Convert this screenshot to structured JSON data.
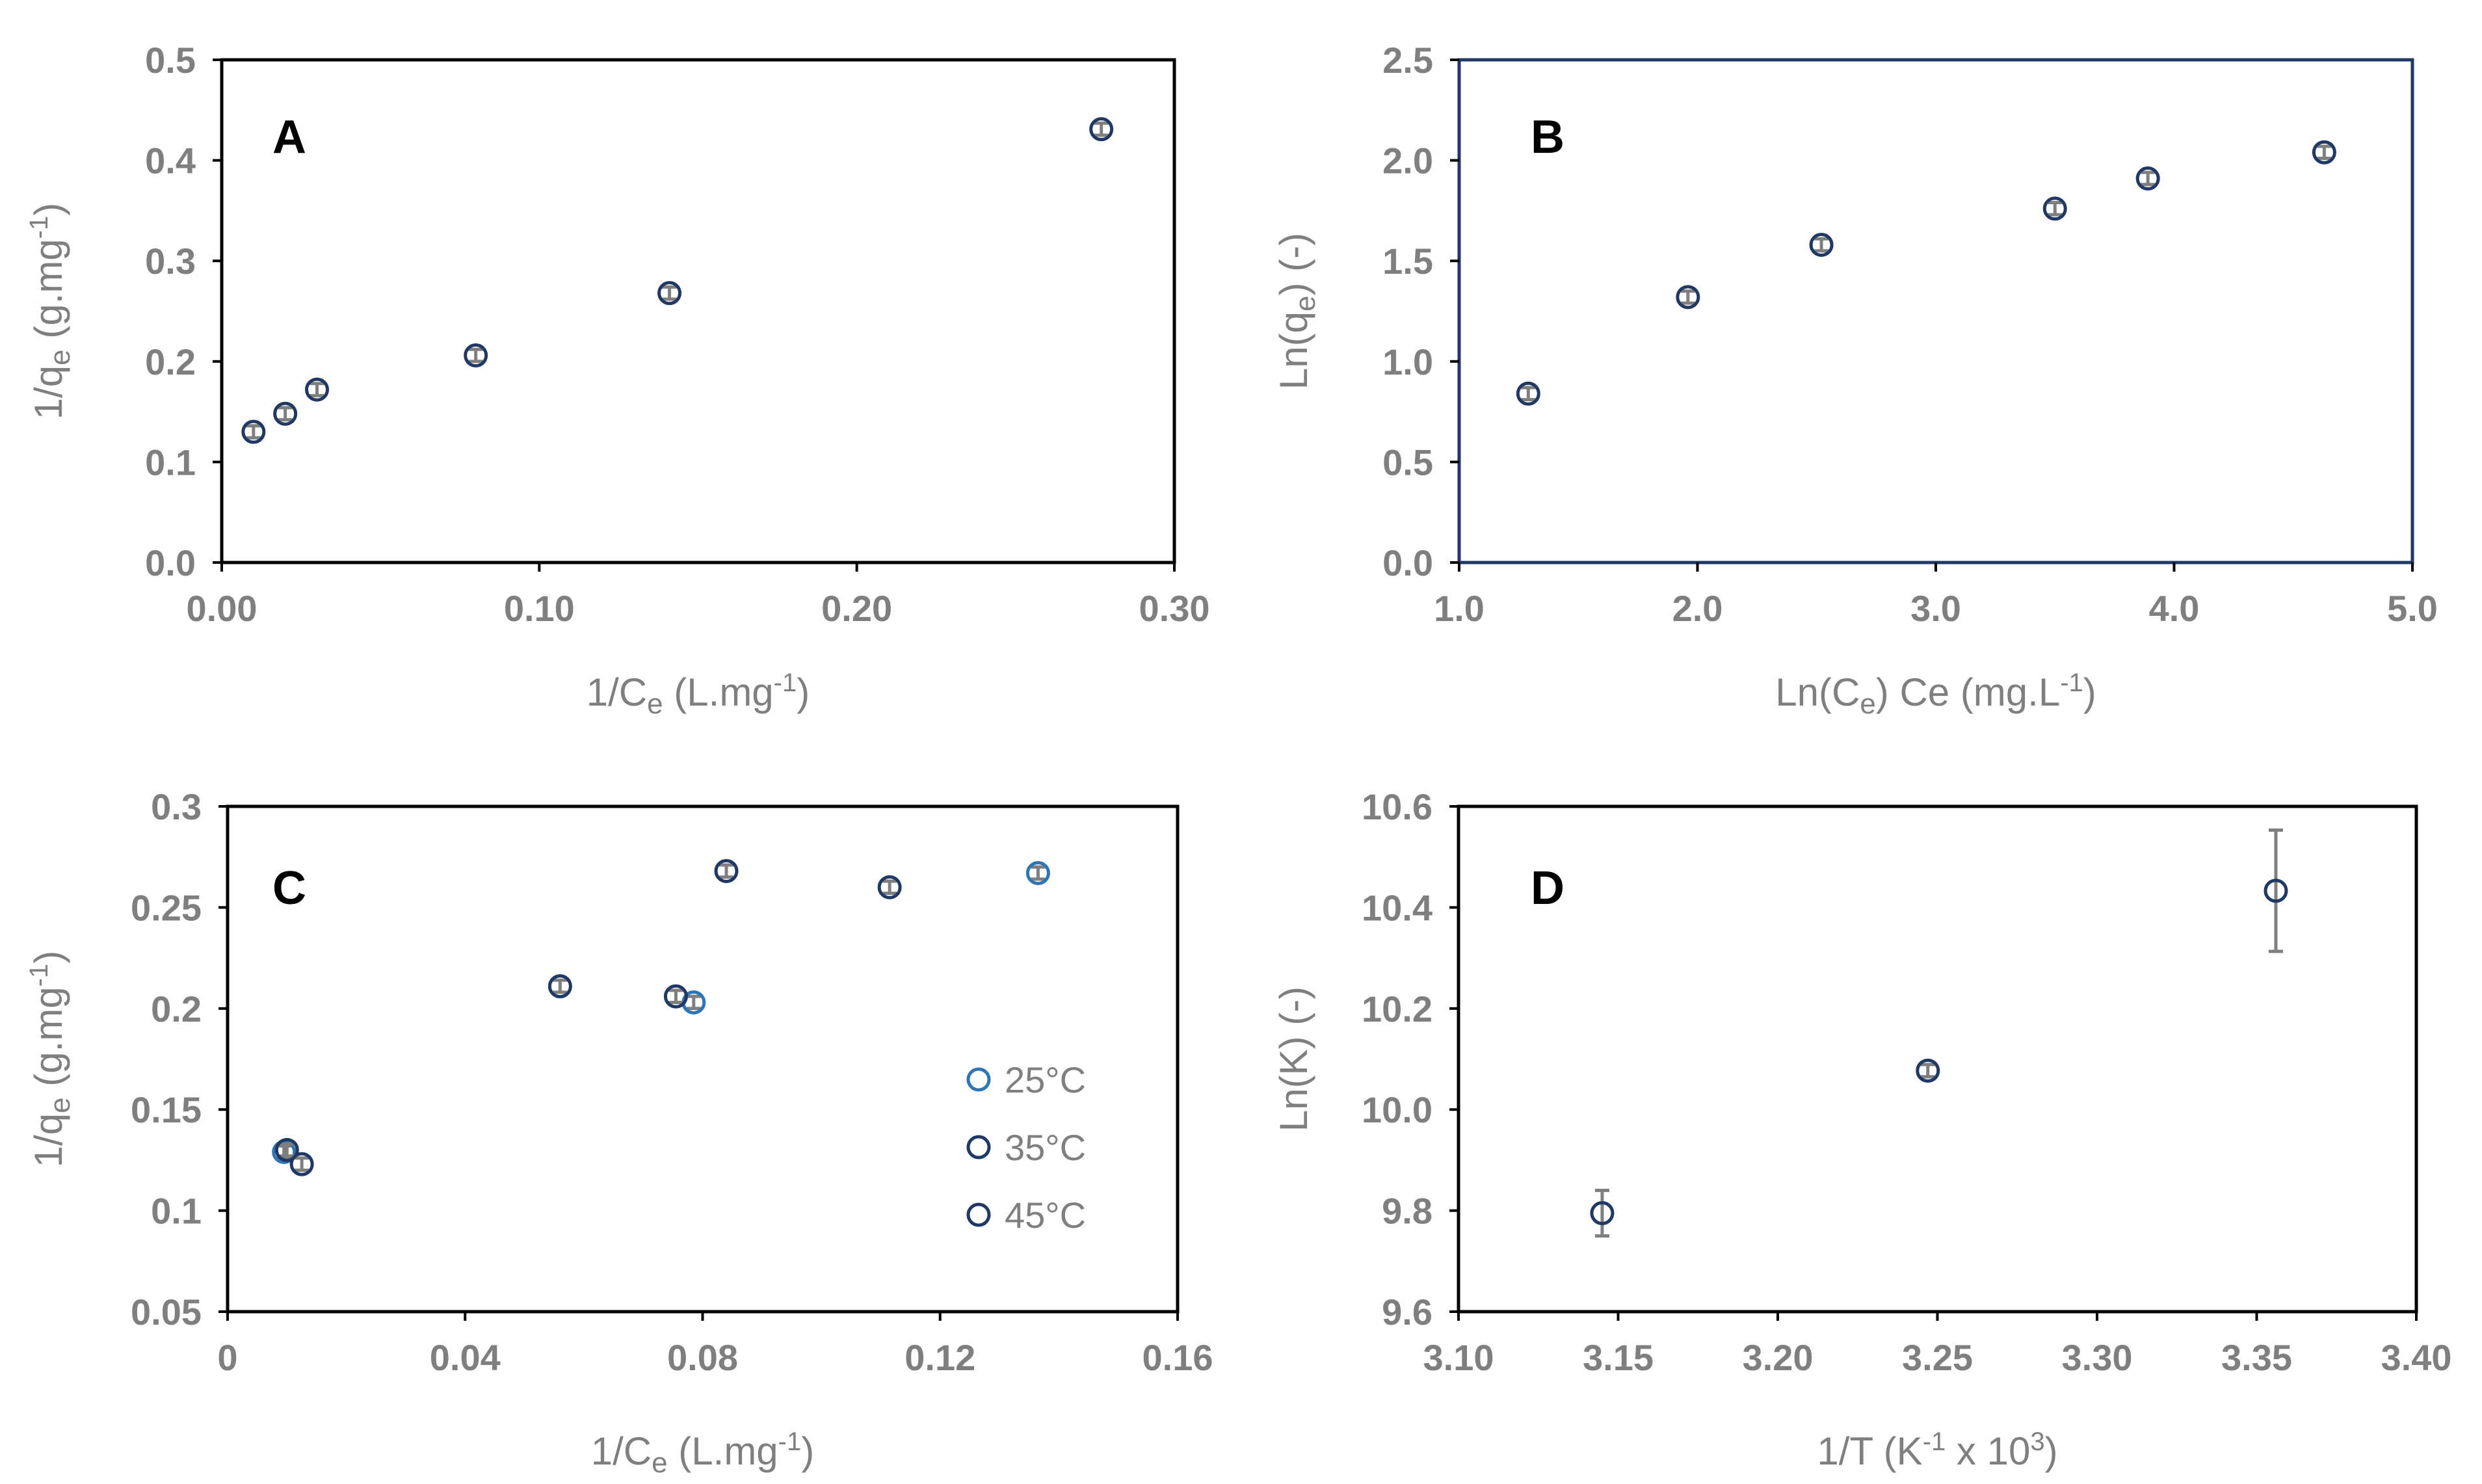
{
  "figure": {
    "colors": {
      "axis": "#000000",
      "tick": "#7f7f7f",
      "marker_dark": "#1f3864",
      "marker_blue": "#2e75b6",
      "errorbar": "#7f7f7f"
    }
  },
  "chart_data": [
    {
      "panel": "A",
      "type": "scatter",
      "xlabel": {
        "main": "1/C",
        "sub": "e",
        "rest": " (L.mg",
        "sup": "-1",
        "tail": ")"
      },
      "ylabel": {
        "main": "1/q",
        "sub": "e",
        "rest": " (g.mg",
        "sup": "-1",
        "tail": ")"
      },
      "xlim": [
        0,
        0.3
      ],
      "ylim": [
        0,
        0.5
      ],
      "xticks": [
        0,
        0.1,
        0.2,
        0.3
      ],
      "xtick_labels": [
        "0.00",
        "0.10",
        "0.20",
        "0.30"
      ],
      "yticks": [
        0,
        0.1,
        0.2,
        0.3,
        0.4,
        0.5
      ],
      "ytick_labels": [
        "0.0",
        "0.1",
        "0.2",
        "0.3",
        "0.4",
        "0.5"
      ],
      "series": [
        {
          "name": "",
          "color": "#1f3864",
          "points": [
            {
              "x": 0.01,
              "y": 0.13,
              "err": 0.006
            },
            {
              "x": 0.02,
              "y": 0.148,
              "err": 0.006
            },
            {
              "x": 0.03,
              "y": 0.172,
              "err": 0.006
            },
            {
              "x": 0.08,
              "y": 0.206,
              "err": 0.006
            },
            {
              "x": 0.141,
              "y": 0.268,
              "err": 0.006
            },
            {
              "x": 0.277,
              "y": 0.431,
              "err": 0.006
            }
          ]
        }
      ]
    },
    {
      "panel": "B",
      "type": "scatter",
      "xlabel": {
        "main": "Ln(C",
        "sub": "e",
        "rest": ") Ce (mg.L",
        "sup": "-1",
        "tail": ")"
      },
      "ylabel": {
        "main": "Ln(q",
        "sub": "e",
        "rest": ") (-)",
        "sup": "",
        "tail": ""
      },
      "xlim": [
        1.0,
        5.0
      ],
      "ylim": [
        0,
        2.5
      ],
      "xticks": [
        1,
        2,
        3,
        4,
        5
      ],
      "xtick_labels": [
        "1.0",
        "2.0",
        "3.0",
        "4.0",
        "5.0"
      ],
      "yticks": [
        0,
        0.5,
        1.0,
        1.5,
        2.0,
        2.5
      ],
      "ytick_labels": [
        "0.0",
        "0.5",
        "1.0",
        "1.5",
        "2.0",
        "2.5"
      ],
      "series": [
        {
          "name": "",
          "color": "#1f3864",
          "points": [
            {
              "x": 1.29,
              "y": 0.84,
              "err": 0.03
            },
            {
              "x": 1.96,
              "y": 1.32,
              "err": 0.03
            },
            {
              "x": 2.52,
              "y": 1.58,
              "err": 0.03
            },
            {
              "x": 3.5,
              "y": 1.76,
              "err": 0.03
            },
            {
              "x": 3.89,
              "y": 1.91,
              "err": 0.03
            },
            {
              "x": 4.63,
              "y": 2.04,
              "err": 0.03
            }
          ]
        }
      ]
    },
    {
      "panel": "C",
      "type": "scatter",
      "xlabel": {
        "main": "1/C",
        "sub": "e",
        "rest": " (L.mg",
        "sup": "-1",
        "tail": ")"
      },
      "ylabel": {
        "main": "1/q",
        "sub": "e",
        "rest": " (g.mg",
        "sup": "-1",
        "tail": ")"
      },
      "xlim": [
        0,
        0.16
      ],
      "ylim": [
        0.05,
        0.3
      ],
      "xticks": [
        0,
        0.04,
        0.08,
        0.12,
        0.16
      ],
      "xtick_labels": [
        "0",
        "0.04",
        "0.08",
        "0.12",
        "0.16"
      ],
      "yticks": [
        0.05,
        0.1,
        0.15,
        0.2,
        0.25,
        0.3
      ],
      "ytick_labels": [
        "0.05",
        "0.1",
        "0.15",
        "0.2",
        "0.25",
        "0.3"
      ],
      "legend_position": "right-middle",
      "series": [
        {
          "name": "25°C",
          "color": "#2e75b6",
          "points": [
            {
              "x": 0.0095,
              "y": 0.129,
              "err": 0.003
            },
            {
              "x": 0.0785,
              "y": 0.203,
              "err": 0.003
            },
            {
              "x": 0.1365,
              "y": 0.267,
              "err": 0.003
            }
          ]
        },
        {
          "name": "35°C",
          "color": "#1f3864",
          "points": [
            {
              "x": 0.01,
              "y": 0.13,
              "err": 0.003
            },
            {
              "x": 0.0755,
              "y": 0.206,
              "err": 0.003
            },
            {
              "x": 0.1115,
              "y": 0.26,
              "err": 0.003
            }
          ]
        },
        {
          "name": "45°C",
          "color": "#1f3864",
          "points": [
            {
              "x": 0.0125,
              "y": 0.123,
              "err": 0.003
            },
            {
              "x": 0.056,
              "y": 0.211,
              "err": 0.003
            },
            {
              "x": 0.084,
              "y": 0.268,
              "err": 0.003
            }
          ]
        }
      ]
    },
    {
      "panel": "D",
      "type": "scatter",
      "xlabel": {
        "main": "1/T (K",
        "sub": "",
        "rest": "",
        "sup": "-1",
        "tail": " x 10",
        "sup2": "3",
        "tail2": ")"
      },
      "ylabel": {
        "main": "Ln(K) (-)",
        "sub": "",
        "rest": "",
        "sup": "",
        "tail": ""
      },
      "xlim": [
        3.1,
        3.4
      ],
      "ylim": [
        9.6,
        10.6
      ],
      "xticks": [
        3.1,
        3.15,
        3.2,
        3.25,
        3.3,
        3.35,
        3.4
      ],
      "xtick_labels": [
        "3.10",
        "3.15",
        "3.20",
        "3.25",
        "3.30",
        "3.35",
        "3.40"
      ],
      "yticks": [
        9.6,
        9.8,
        10.0,
        10.2,
        10.4,
        10.6
      ],
      "ytick_labels": [
        "9.6",
        "9.8",
        "10.0",
        "10.2",
        "10.4",
        "10.6"
      ],
      "series": [
        {
          "name": "",
          "color": "#1f3864",
          "points": [
            {
              "x": 3.145,
              "y": 9.795,
              "err": 0.045
            },
            {
              "x": 3.247,
              "y": 10.077,
              "err": 0.012
            },
            {
              "x": 3.356,
              "y": 10.433,
              "err": 0.12
            }
          ]
        }
      ]
    }
  ]
}
